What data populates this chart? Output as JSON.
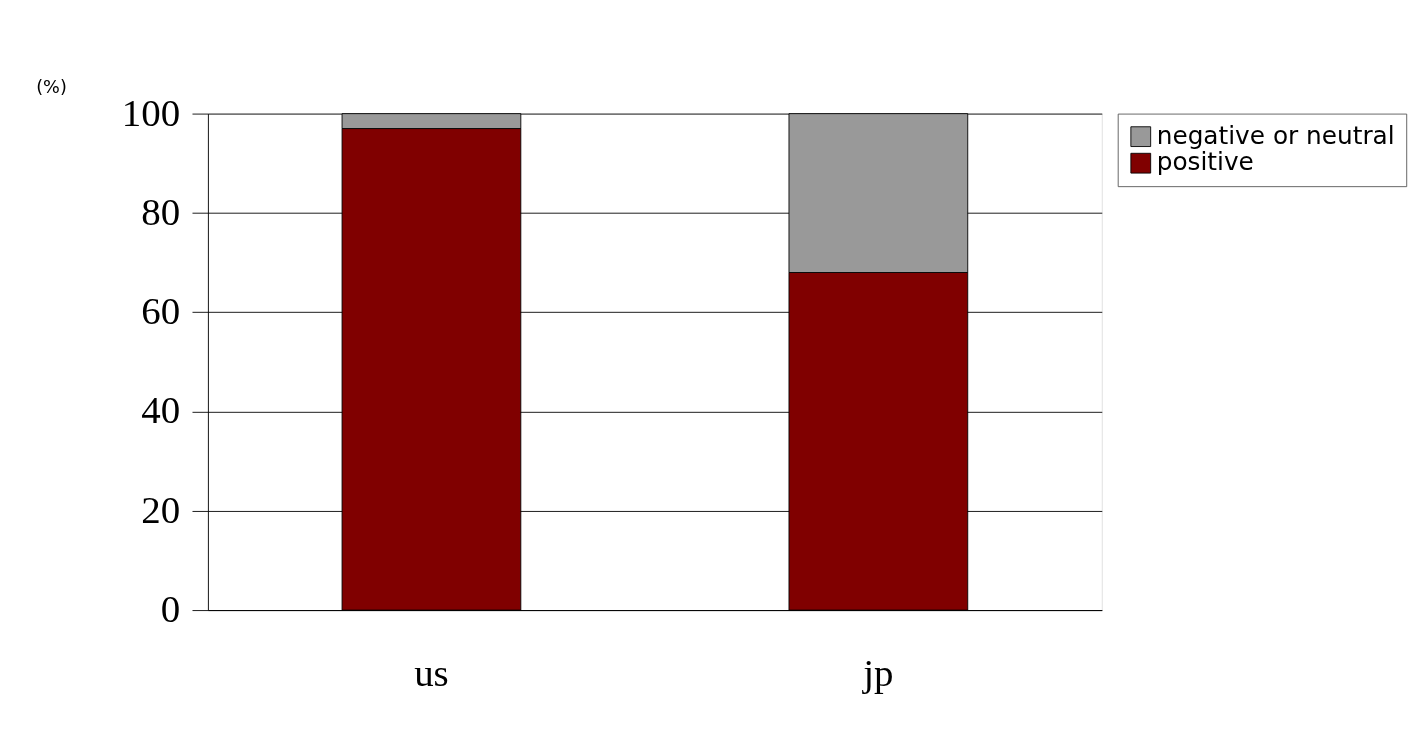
{
  "chart_data": {
    "type": "bar",
    "stacked": true,
    "ylabel": "(%)",
    "categories": [
      "us",
      "jp"
    ],
    "series": [
      {
        "name": "positive",
        "color": "#800000",
        "values": [
          97,
          68
        ]
      },
      {
        "name": "negative or neutral",
        "color": "#999999",
        "values": [
          3,
          32
        ]
      }
    ],
    "ylim": [
      0,
      100
    ],
    "yticks": [
      0,
      20,
      40,
      60,
      80,
      100
    ],
    "grid": "y",
    "legend": "top right"
  }
}
